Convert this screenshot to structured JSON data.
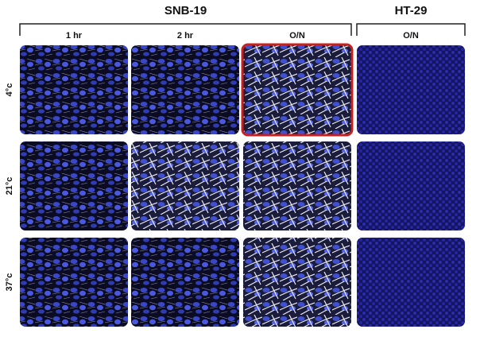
{
  "groups": [
    "SNB-19",
    "HT-29"
  ],
  "columns": [
    "1 hr",
    "2 hr",
    "O/N",
    "O/N"
  ],
  "rows": [
    "4°c",
    "21°c",
    "37°c"
  ]
}
